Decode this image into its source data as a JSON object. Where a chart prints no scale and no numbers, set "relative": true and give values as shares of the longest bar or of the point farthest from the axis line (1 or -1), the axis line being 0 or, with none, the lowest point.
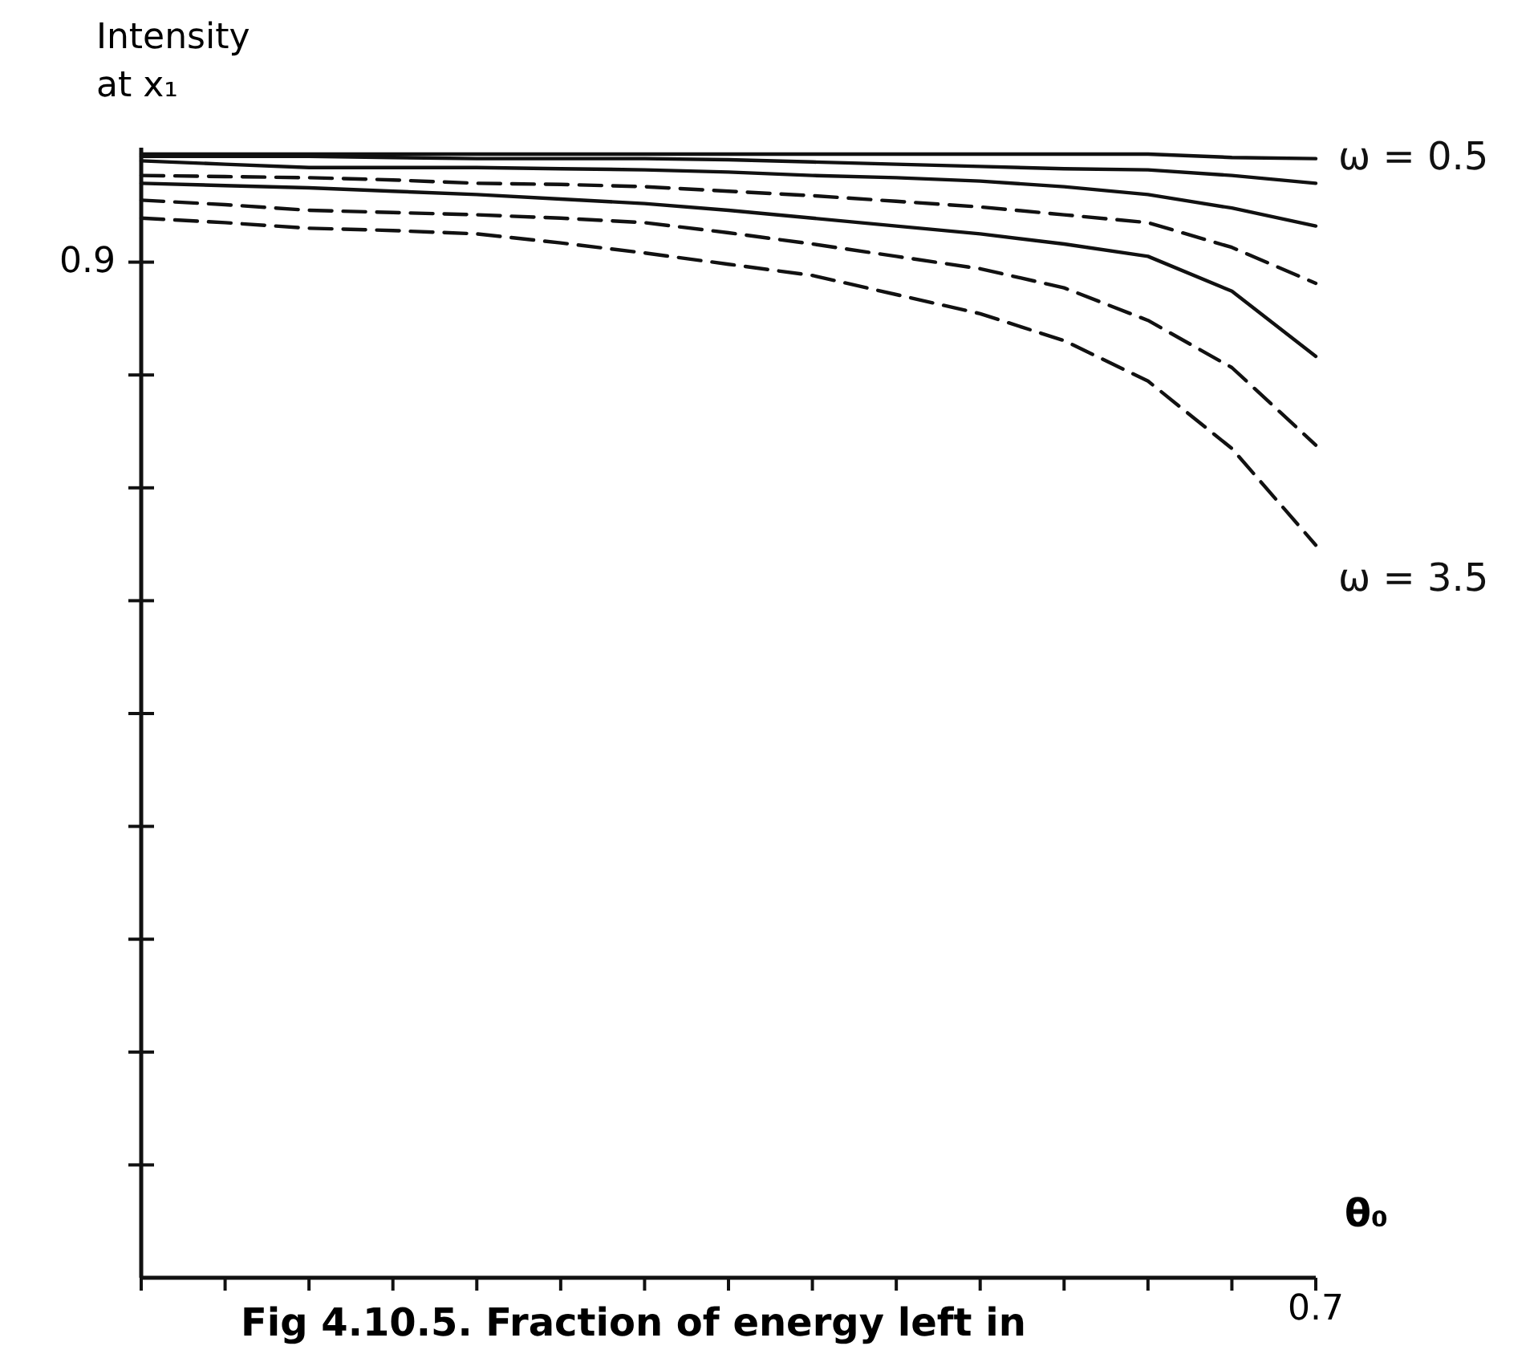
{
  "chart_data": {
    "type": "line",
    "title": "Fig 4.10.5. Fraction of energy left in",
    "xlabel": "θ₀",
    "ylabel": "Intensity\nat x₁",
    "relative": true,
    "categories": [
      null,
      null,
      null,
      null,
      null,
      null,
      null,
      null,
      null,
      null,
      null,
      null,
      null,
      null,
      null
    ],
    "series": [
      {
        "name": "ω = 0.5",
        "color": "#111111",
        "line_style": "solid",
        "values": [
          1,
          1,
          1,
          1,
          1,
          1,
          1,
          1,
          1,
          1,
          1,
          1,
          1,
          0.997,
          0.996
        ]
      },
      {
        "color": "#111111",
        "line_style": "solid",
        "values": [
          0.998,
          0.998,
          0.998,
          0.997,
          0.996,
          0.996,
          0.996,
          0.995,
          0.993,
          0.991,
          0.989,
          0.987,
          0.986,
          0.981,
          0.974
        ]
      },
      {
        "color": "#111111",
        "line_style": "solid",
        "values": [
          0.994,
          0.991,
          0.988,
          0.988,
          0.988,
          0.987,
          0.986,
          0.984,
          0.981,
          0.979,
          0.976,
          0.971,
          0.964,
          0.952,
          0.936
        ]
      },
      {
        "color": "#111111",
        "line_style": "dashed",
        "values": [
          0.981,
          0.98,
          0.979,
          0.977,
          0.974,
          0.973,
          0.971,
          0.967,
          0.963,
          0.958,
          0.953,
          0.946,
          0.939,
          0.917,
          0.885
        ]
      },
      {
        "color": "#111111",
        "line_style": "solid",
        "values": [
          0.974,
          0.972,
          0.97,
          0.967,
          0.964,
          0.96,
          0.956,
          0.95,
          0.943,
          0.936,
          0.929,
          0.92,
          0.909,
          0.878,
          0.82
        ]
      },
      {
        "color": "#111111",
        "line_style": "dashed",
        "values": [
          0.959,
          0.955,
          0.95,
          0.948,
          0.946,
          0.943,
          0.939,
          0.93,
          0.92,
          0.909,
          0.898,
          0.881,
          0.852,
          0.81,
          0.741
        ]
      },
      {
        "name": "ω = 3.5",
        "color": "#111111",
        "line_style": "dashed",
        "values": [
          0.943,
          0.939,
          0.934,
          0.932,
          0.929,
          0.921,
          0.912,
          0.902,
          0.892,
          0.875,
          0.858,
          0.834,
          0.798,
          0.738,
          0.652
        ]
      }
    ],
    "annotations": [
      "0.9",
      "0.7"
    ],
    "legend": false,
    "marker": "none"
  }
}
